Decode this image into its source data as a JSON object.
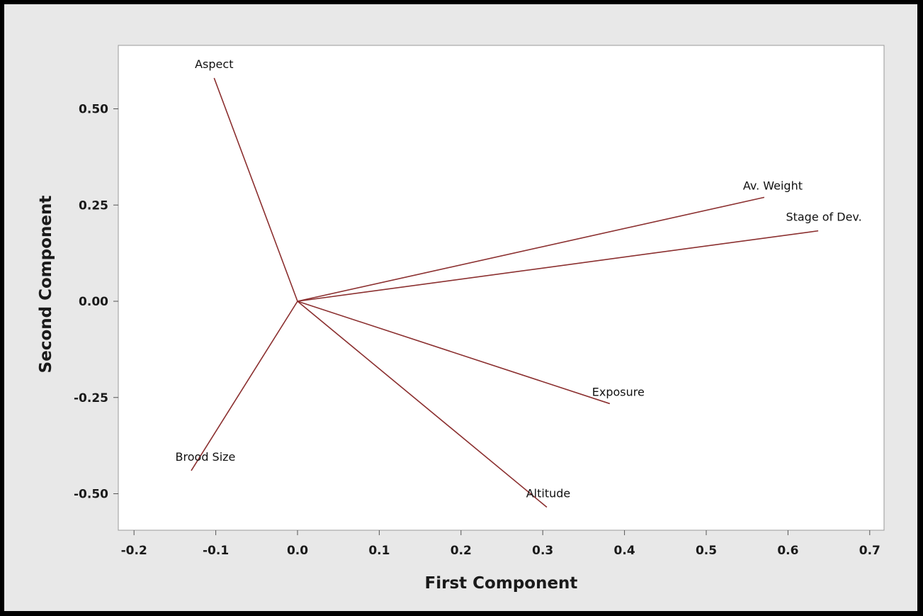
{
  "colors": {
    "background": "#e8e8e8",
    "plot_background": "#ffffff",
    "vector": "#8b2f2f",
    "frame": "#9a9a9a"
  },
  "chart_data": {
    "type": "scatter",
    "variant": "loading-plot",
    "xlabel": "First Component",
    "ylabel": "Second Component",
    "xlim": [
      -0.22,
      0.72
    ],
    "ylim": [
      -0.6,
      0.65
    ],
    "xticks": [
      -0.2,
      -0.1,
      0.0,
      0.1,
      0.2,
      0.3,
      0.4,
      0.5,
      0.6,
      0.7
    ],
    "xtick_labels": [
      "-0.2",
      "-0.1",
      "0.0",
      "0.1",
      "0.2",
      "0.3",
      "0.4",
      "0.5",
      "0.6",
      "0.7"
    ],
    "yticks": [
      0.5,
      0.25,
      0.0,
      -0.25,
      -0.5
    ],
    "ytick_labels": [
      "0.50",
      "0.25",
      "0.00",
      "-0.25",
      "-0.50"
    ],
    "grid": false,
    "vectors": [
      {
        "label": "Aspect",
        "x": -0.102,
        "y": 0.58
      },
      {
        "label": "Av. Weight",
        "x": 0.571,
        "y": 0.27
      },
      {
        "label": "Stage of Dev.",
        "x": 0.637,
        "y": 0.183
      },
      {
        "label": "Exposure",
        "x": 0.382,
        "y": -0.266
      },
      {
        "label": "Brood Size",
        "x": -0.13,
        "y": -0.44
      },
      {
        "label": "Altitude",
        "x": 0.305,
        "y": -0.535
      }
    ]
  }
}
